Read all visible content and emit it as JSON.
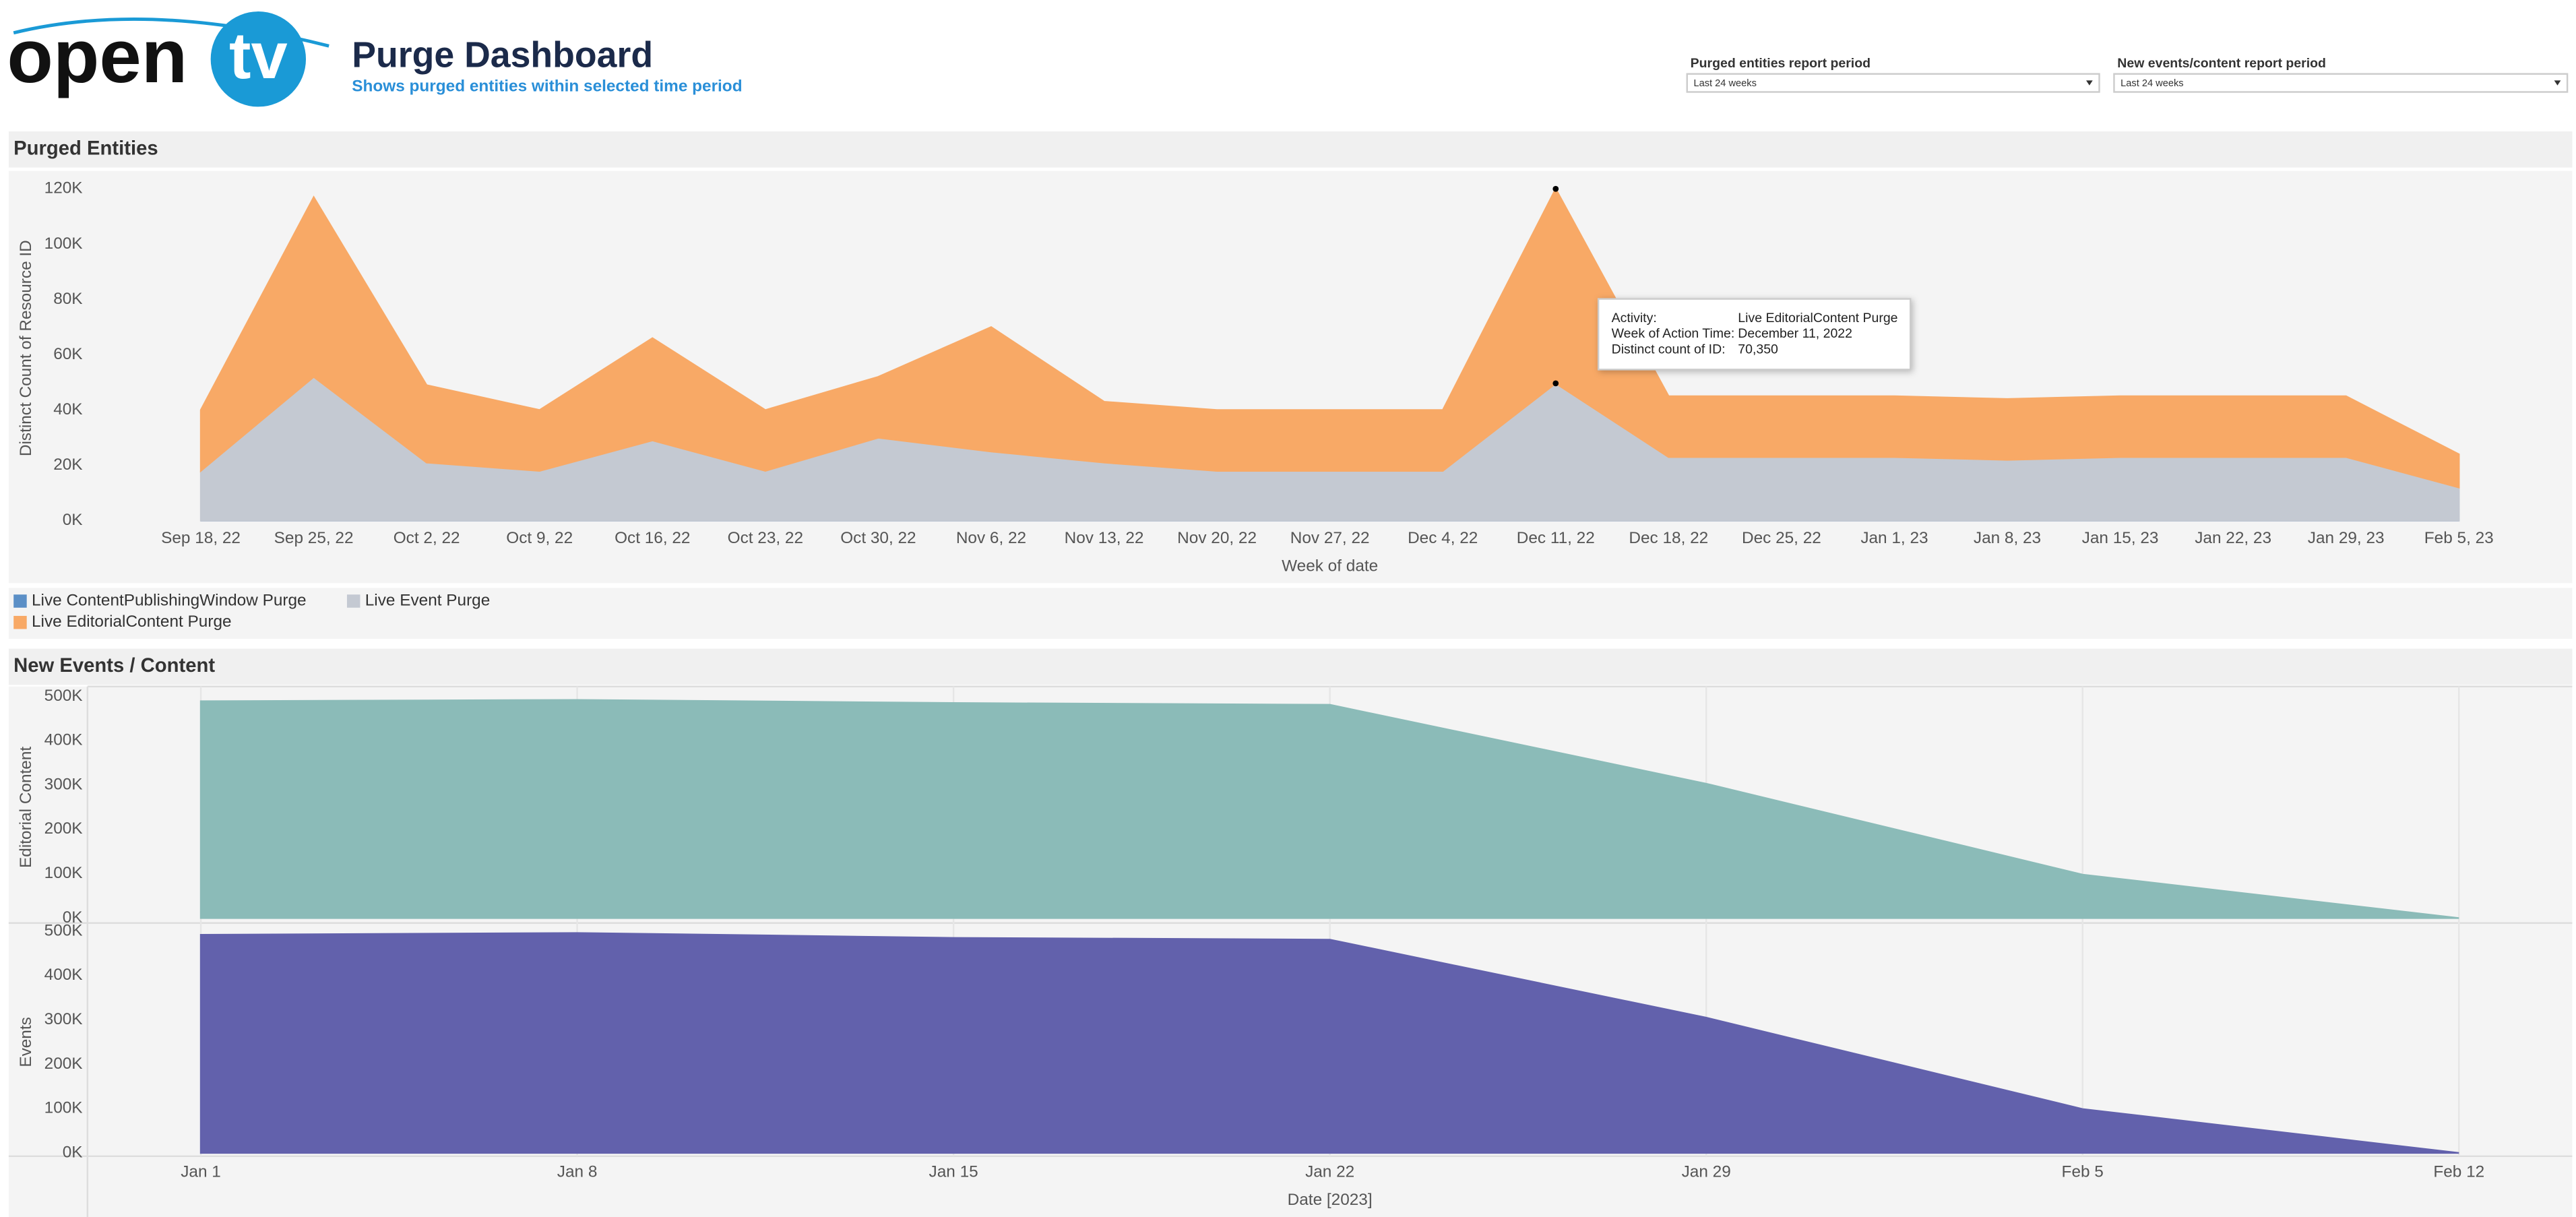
{
  "header": {
    "logo_left": "open",
    "logo_right": "tv",
    "title": "Purge Dashboard",
    "subtitle": "Shows purged entities within selected time period"
  },
  "filters": [
    {
      "label": "Purged entities report period",
      "value": "Last 24 weeks"
    },
    {
      "label": "New events/content report period",
      "value": "Last 24 weeks"
    }
  ],
  "chart_data": [
    {
      "type": "stacked_area",
      "title": "Purged Entities",
      "ylabel": "Distinct Count of Resource ID",
      "xlabel": "Week of date",
      "categories": [
        "Sep 18, 22",
        "Sep 25, 22",
        "Oct 2, 22",
        "Oct 9, 22",
        "Oct 16, 22",
        "Oct 23, 22",
        "Oct 30, 22",
        "Nov 6, 22",
        "Nov 13, 22",
        "Nov 20, 22",
        "Nov 27, 22",
        "Dec 4, 22",
        "Dec 11, 22",
        "Dec 18, 22",
        "Dec 25, 22",
        "Jan 1, 23",
        "Jan 8, 23",
        "Jan 15, 23",
        "Jan 22, 23",
        "Jan 29, 23",
        "Feb 5, 23"
      ],
      "series": [
        {
          "name": "Live ContentPublishingWindow Purge",
          "color": "#5b8fc6",
          "values": [
            0,
            0,
            0,
            0,
            0,
            0,
            0,
            0,
            0,
            0,
            0,
            0,
            0,
            0,
            0,
            0,
            0,
            0,
            0,
            0,
            0
          ]
        },
        {
          "name": "Live Event Purge",
          "color": "#c4c9d2",
          "values": [
            18000,
            52000,
            21000,
            18000,
            29000,
            18000,
            30000,
            25000,
            21000,
            18000,
            18000,
            18000,
            49650,
            23000,
            23000,
            23000,
            22000,
            23000,
            23000,
            23000,
            12000
          ]
        },
        {
          "name": "Live EditorialContent Purge",
          "color": "#f8a966",
          "values": [
            22000,
            65000,
            28000,
            22000,
            37000,
            22000,
            22000,
            45000,
            22000,
            22000,
            22000,
            22000,
            70350,
            22000,
            22000,
            22000,
            22000,
            22000,
            22000,
            22000,
            12000
          ]
        }
      ],
      "ylim": [
        0,
        120000
      ],
      "yticks": [
        {
          "value": 0,
          "label": "0K"
        },
        {
          "value": 20000,
          "label": "20K"
        },
        {
          "value": 40000,
          "label": "40K"
        },
        {
          "value": 60000,
          "label": "60K"
        },
        {
          "value": 80000,
          "label": "80K"
        },
        {
          "value": 100000,
          "label": "100K"
        },
        {
          "value": 120000,
          "label": "120K"
        }
      ],
      "tooltip": [
        [
          "Activity:",
          "Live EditorialContent Purge"
        ],
        [
          "Week of Action Time:",
          "December 11, 2022"
        ],
        [
          "Distinct count of ID:",
          "70,350"
        ]
      ]
    },
    {
      "type": "area",
      "title": "New Events / Content",
      "xlabel": "Date [2023]",
      "categories": [
        "Jan 1",
        "Jan 8",
        "Jan 15",
        "Jan 22",
        "Jan 29",
        "Feb 5",
        "Feb 12"
      ],
      "series": [
        {
          "name": "Editorial Content",
          "color": "#8bbbb8",
          "values": [
            489000,
            492000,
            485000,
            481000,
            303000,
            98000,
            0
          ]
        },
        {
          "name": "Events",
          "color": "#6261ac",
          "values": [
            492000,
            496000,
            485000,
            481000,
            305000,
            99000,
            0
          ]
        }
      ],
      "ylim": [
        0,
        500000
      ],
      "yticks": [
        {
          "value": 0,
          "label": "0K"
        },
        {
          "value": 100000,
          "label": "100K"
        },
        {
          "value": 200000,
          "label": "200K"
        },
        {
          "value": 300000,
          "label": "300K"
        },
        {
          "value": 400000,
          "label": "400K"
        },
        {
          "value": 500000,
          "label": "500K"
        }
      ]
    }
  ]
}
